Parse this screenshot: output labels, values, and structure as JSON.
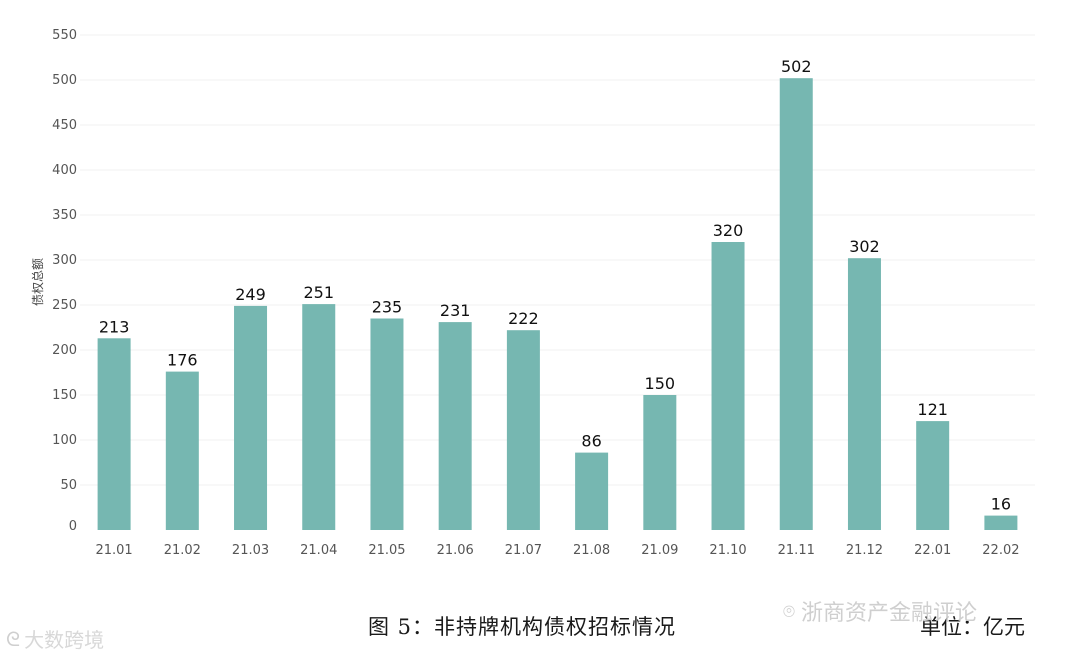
{
  "chart_data": {
    "type": "bar",
    "categories": [
      "21.01",
      "21.02",
      "21.03",
      "21.04",
      "21.05",
      "21.06",
      "21.07",
      "21.08",
      "21.09",
      "21.10",
      "21.11",
      "21.12",
      "22.01",
      "22.02"
    ],
    "values": [
      213,
      176,
      249,
      251,
      235,
      231,
      222,
      86,
      150,
      320,
      502,
      302,
      121,
      16
    ],
    "ylabel": "债权总额",
    "ylim": [
      0,
      550
    ],
    "yticks": [
      0,
      50,
      100,
      150,
      200,
      250,
      300,
      350,
      400,
      450,
      500,
      550
    ],
    "grid": true,
    "bar_color": "#76b7b1"
  },
  "caption": "图 5：非持牌机构债权招标情况",
  "unit": "单位：亿元",
  "watermarks": {
    "right": "浙商资产金融评论",
    "left": "大数跨境"
  }
}
